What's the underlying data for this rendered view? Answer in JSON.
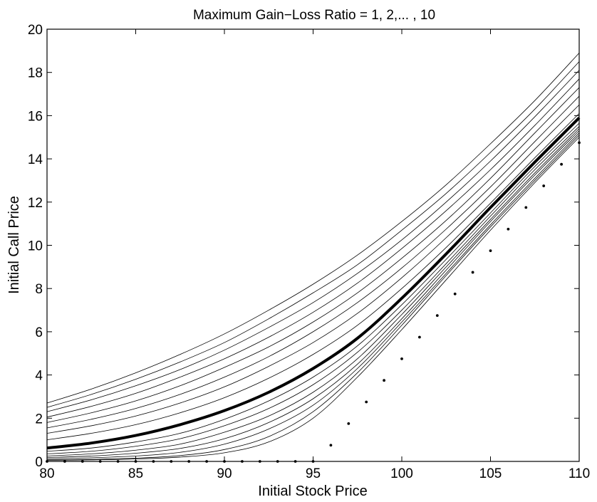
{
  "chart_data": {
    "type": "line",
    "title": "Maximum Gain−Loss Ratio = 1, 2,... , 10",
    "xlabel": "Initial Stock Price",
    "ylabel": "Initial Call Price",
    "xlim": [
      80,
      110
    ],
    "ylim": [
      0,
      20
    ],
    "x_ticks": [
      "80",
      "85",
      "90",
      "95",
      "100",
      "105",
      "110"
    ],
    "y_ticks": [
      "0",
      "2",
      "4",
      "6",
      "8",
      "10",
      "12",
      "14",
      "16",
      "18",
      "20"
    ],
    "grid": false,
    "legend": "none",
    "x": [
      80,
      82.5,
      85,
      87.5,
      90,
      92.5,
      95,
      97.5,
      100,
      102.5,
      105,
      107.5,
      110
    ],
    "series": [
      {
        "emphasis": false,
        "values": [
          0.05,
          0.07,
          0.11,
          0.2,
          0.4,
          0.9,
          2.0,
          3.9,
          6.1,
          8.4,
          10.7,
          12.9,
          15.0
        ]
      },
      {
        "emphasis": false,
        "values": [
          0.07,
          0.1,
          0.15,
          0.27,
          0.55,
          1.15,
          2.3,
          4.1,
          6.3,
          8.6,
          10.85,
          13.0,
          15.1
        ]
      },
      {
        "emphasis": false,
        "values": [
          0.12,
          0.17,
          0.25,
          0.42,
          0.8,
          1.5,
          2.6,
          4.3,
          6.45,
          8.7,
          10.95,
          13.1,
          15.2
        ]
      },
      {
        "emphasis": false,
        "values": [
          0.18,
          0.25,
          0.38,
          0.6,
          1.05,
          1.8,
          2.9,
          4.5,
          6.6,
          8.85,
          11.1,
          13.25,
          15.3
        ]
      },
      {
        "emphasis": false,
        "values": [
          0.25,
          0.35,
          0.52,
          0.8,
          1.35,
          2.1,
          3.2,
          4.75,
          6.8,
          9.0,
          11.2,
          13.35,
          15.4
        ]
      },
      {
        "emphasis": false,
        "values": [
          0.35,
          0.47,
          0.7,
          1.05,
          1.65,
          2.45,
          3.55,
          5.05,
          7.0,
          9.15,
          11.35,
          13.5,
          15.5
        ]
      },
      {
        "emphasis": false,
        "values": [
          0.47,
          0.62,
          0.9,
          1.3,
          1.95,
          2.8,
          3.9,
          5.35,
          7.25,
          9.35,
          11.5,
          13.65,
          15.65
        ]
      },
      {
        "emphasis": true,
        "values": [
          0.62,
          0.85,
          1.2,
          1.7,
          2.35,
          3.2,
          4.3,
          5.7,
          7.55,
          9.6,
          11.75,
          13.85,
          15.9
        ]
      },
      {
        "emphasis": false,
        "values": [
          1.0,
          1.3,
          1.7,
          2.25,
          2.95,
          3.85,
          4.95,
          6.3,
          8.0,
          9.9,
          11.95,
          14.05,
          16.1
        ]
      },
      {
        "emphasis": false,
        "values": [
          1.3,
          1.65,
          2.1,
          2.7,
          3.45,
          4.4,
          5.5,
          6.85,
          8.5,
          10.35,
          12.35,
          14.45,
          16.5
        ]
      },
      {
        "emphasis": false,
        "values": [
          1.55,
          1.95,
          2.45,
          3.1,
          3.9,
          4.85,
          6.0,
          7.35,
          8.95,
          10.75,
          12.7,
          14.8,
          16.9
        ]
      },
      {
        "emphasis": false,
        "values": [
          1.8,
          2.25,
          2.8,
          3.5,
          4.35,
          5.3,
          6.45,
          7.8,
          9.4,
          11.15,
          13.1,
          15.2,
          17.3
        ]
      },
      {
        "emphasis": false,
        "values": [
          2.05,
          2.55,
          3.15,
          3.9,
          4.75,
          5.75,
          6.9,
          8.25,
          9.85,
          11.6,
          13.5,
          15.55,
          17.7
        ]
      },
      {
        "emphasis": false,
        "values": [
          2.3,
          2.85,
          3.5,
          4.25,
          5.15,
          6.2,
          7.35,
          8.7,
          10.25,
          12.0,
          13.9,
          15.95,
          18.1
        ]
      },
      {
        "emphasis": false,
        "values": [
          2.5,
          3.1,
          3.8,
          4.6,
          5.5,
          6.6,
          7.8,
          9.1,
          10.7,
          12.4,
          14.3,
          16.3,
          18.5
        ]
      },
      {
        "emphasis": false,
        "values": [
          2.7,
          3.35,
          4.1,
          4.95,
          5.9,
          7.0,
          8.2,
          9.55,
          11.1,
          12.8,
          14.7,
          16.7,
          18.9
        ]
      }
    ],
    "dots": {
      "x": [
        80,
        81,
        82,
        83,
        84,
        85,
        86,
        87,
        88,
        89,
        90,
        91,
        92,
        93,
        94,
        95,
        96,
        97,
        98,
        99,
        100,
        101,
        102,
        103,
        104,
        105,
        106,
        107,
        108,
        109,
        110
      ],
      "values": [
        0,
        0,
        0,
        0,
        0,
        0,
        0,
        0,
        0,
        0,
        0,
        0,
        0,
        0,
        0,
        0,
        0.75,
        1.75,
        2.75,
        3.75,
        4.75,
        5.75,
        6.75,
        7.75,
        8.75,
        9.75,
        10.75,
        11.75,
        12.75,
        13.75,
        14.75
      ]
    },
    "colors": {
      "line": "#000000",
      "background": "#ffffff"
    }
  }
}
